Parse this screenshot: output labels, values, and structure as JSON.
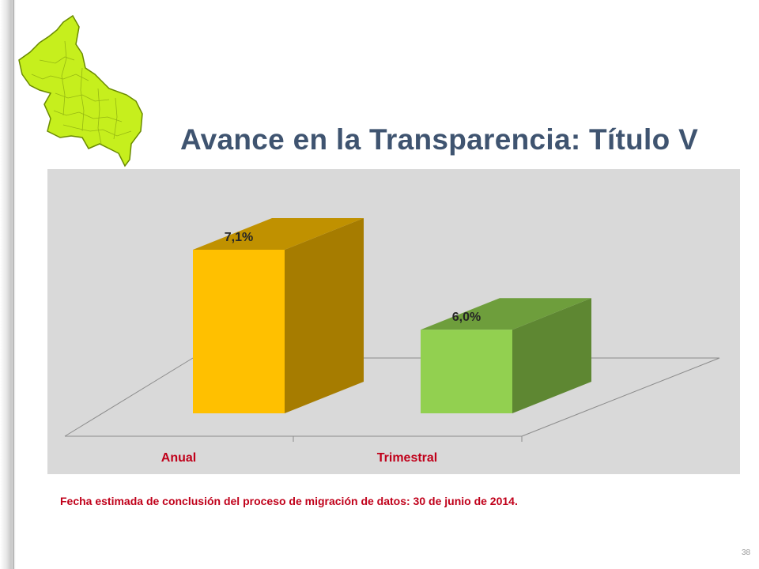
{
  "slide": {
    "title": "Avance en la Transparencia: Título V",
    "footnote": "Fecha estimada de conclusión del proceso de migración de datos: 30 de junio de 2014.",
    "page_number": "38"
  },
  "logo": {
    "icon": "state-map-icon",
    "fill": "#c6ef1d",
    "stroke": "#6a8a00"
  },
  "chart_data": {
    "type": "bar",
    "categories": [
      "Anual",
      "Trimestral"
    ],
    "values": [
      7.1,
      6.0
    ],
    "value_labels": [
      "7,1%",
      "6,0%"
    ],
    "ylabel": "",
    "xlabel": "",
    "title": "",
    "colors": {
      "front": [
        "#ffc000",
        "#92d050"
      ],
      "side": [
        "#a67c00",
        "#5e8732"
      ],
      "top": [
        "#c09100",
        "#6e9e3c"
      ]
    },
    "category_label_color": "#c0001a",
    "background": "#d9d9d9",
    "grid": false,
    "legend": "none"
  }
}
